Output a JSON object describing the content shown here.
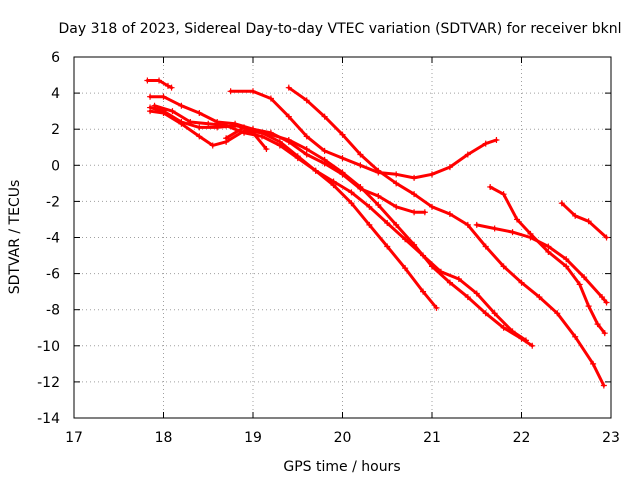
{
  "chart_data": {
    "type": "scatter",
    "title": "Day 318 of 2023, Sidereal Day-to-day VTEC variation (SDTVAR) for receiver bknl",
    "xlabel": "GPS time / hours",
    "ylabel": "SDTVAR / TECUs",
    "xlim": [
      17,
      23
    ],
    "ylim": [
      -14,
      6
    ],
    "xticks": [
      17,
      18,
      19,
      20,
      21,
      22,
      23
    ],
    "yticks": [
      -14,
      -12,
      -10,
      -8,
      -6,
      -4,
      -2,
      0,
      2,
      4,
      6
    ],
    "grid": true,
    "color": "#ff0000",
    "marker": "plus",
    "series": [
      {
        "name": "arc-1",
        "points": [
          [
            17.82,
            4.7
          ],
          [
            17.95,
            4.7
          ],
          [
            18.05,
            4.4
          ],
          [
            18.09,
            4.3
          ]
        ]
      },
      {
        "name": "arc-2",
        "points": [
          [
            17.85,
            3.8
          ],
          [
            18.0,
            3.8
          ],
          [
            18.2,
            3.3
          ],
          [
            18.4,
            2.9
          ],
          [
            18.6,
            2.4
          ],
          [
            18.8,
            2.3
          ],
          [
            19.0,
            2.0
          ],
          [
            19.2,
            1.8
          ],
          [
            19.4,
            1.3
          ],
          [
            19.6,
            0.6
          ],
          [
            19.8,
            0.1
          ],
          [
            20.0,
            -0.5
          ],
          [
            20.2,
            -1.3
          ],
          [
            20.4,
            -1.7
          ],
          [
            20.6,
            -2.3
          ],
          [
            20.8,
            -2.6
          ],
          [
            20.92,
            -2.6
          ]
        ]
      },
      {
        "name": "arc-3",
        "points": [
          [
            17.85,
            3.2
          ],
          [
            18.0,
            3.0
          ],
          [
            18.2,
            2.4
          ],
          [
            18.4,
            2.1
          ],
          [
            18.6,
            2.1
          ],
          [
            18.8,
            2.2
          ],
          [
            19.0,
            2.0
          ],
          [
            19.2,
            1.7
          ],
          [
            19.4,
            1.4
          ],
          [
            19.6,
            0.9
          ],
          [
            19.8,
            0.3
          ],
          [
            20.0,
            -0.4
          ],
          [
            20.2,
            -1.2
          ],
          [
            20.4,
            -2.2
          ],
          [
            20.6,
            -3.3
          ],
          [
            20.8,
            -4.4
          ],
          [
            21.0,
            -5.6
          ],
          [
            21.2,
            -6.5
          ],
          [
            21.4,
            -7.3
          ],
          [
            21.6,
            -8.2
          ],
          [
            21.8,
            -9.0
          ],
          [
            22.0,
            -9.6
          ],
          [
            22.12,
            -10.0
          ]
        ]
      },
      {
        "name": "arc-4",
        "points": [
          [
            17.85,
            3.0
          ],
          [
            18.0,
            2.9
          ],
          [
            18.2,
            2.3
          ],
          [
            18.4,
            1.6
          ],
          [
            18.55,
            1.1
          ],
          [
            18.7,
            1.3
          ],
          [
            18.9,
            1.9
          ],
          [
            19.1,
            1.8
          ],
          [
            19.3,
            1.3
          ],
          [
            19.5,
            0.5
          ],
          [
            19.7,
            -0.3
          ],
          [
            19.9,
            -0.9
          ],
          [
            20.1,
            -1.5
          ],
          [
            20.3,
            -2.3
          ],
          [
            20.5,
            -3.2
          ],
          [
            20.7,
            -4.1
          ],
          [
            20.9,
            -5.0
          ],
          [
            21.1,
            -5.9
          ],
          [
            21.3,
            -6.3
          ],
          [
            21.5,
            -7.1
          ],
          [
            21.7,
            -8.2
          ],
          [
            21.9,
            -9.2
          ],
          [
            22.05,
            -9.7
          ]
        ]
      },
      {
        "name": "arc-5",
        "points": [
          [
            17.9,
            3.3
          ],
          [
            18.1,
            3.0
          ],
          [
            18.3,
            2.4
          ],
          [
            18.5,
            2.3
          ],
          [
            18.7,
            2.2
          ],
          [
            18.9,
            1.8
          ],
          [
            19.1,
            1.6
          ],
          [
            19.3,
            1.1
          ],
          [
            19.5,
            0.4
          ],
          [
            19.7,
            -0.3
          ],
          [
            19.9,
            -1.1
          ],
          [
            20.1,
            -2.1
          ],
          [
            20.3,
            -3.3
          ],
          [
            20.5,
            -4.5
          ],
          [
            20.7,
            -5.7
          ],
          [
            20.9,
            -7.0
          ],
          [
            21.05,
            -7.9
          ]
        ]
      },
      {
        "name": "arc-6",
        "points": [
          [
            18.7,
            1.5
          ],
          [
            18.9,
            2.1
          ],
          [
            19.0,
            1.8
          ],
          [
            19.15,
            0.9
          ]
        ]
      },
      {
        "name": "arc-7",
        "points": [
          [
            18.75,
            4.1
          ],
          [
            19.0,
            4.1
          ],
          [
            19.2,
            3.7
          ],
          [
            19.4,
            2.7
          ],
          [
            19.6,
            1.6
          ],
          [
            19.8,
            0.8
          ],
          [
            20.0,
            0.4
          ],
          [
            20.2,
            0.0
          ],
          [
            20.4,
            -0.4
          ],
          [
            20.6,
            -0.5
          ],
          [
            20.8,
            -0.7
          ],
          [
            21.0,
            -0.5
          ],
          [
            21.2,
            -0.1
          ],
          [
            21.4,
            0.6
          ],
          [
            21.6,
            1.2
          ],
          [
            21.72,
            1.4
          ]
        ]
      },
      {
        "name": "arc-8",
        "points": [
          [
            19.4,
            4.3
          ],
          [
            19.6,
            3.6
          ],
          [
            19.8,
            2.7
          ],
          [
            20.0,
            1.7
          ],
          [
            20.2,
            0.6
          ],
          [
            20.4,
            -0.3
          ],
          [
            20.6,
            -1.0
          ],
          [
            20.8,
            -1.6
          ],
          [
            21.0,
            -2.3
          ],
          [
            21.2,
            -2.7
          ],
          [
            21.4,
            -3.3
          ],
          [
            21.6,
            -4.5
          ],
          [
            21.8,
            -5.6
          ],
          [
            22.0,
            -6.5
          ],
          [
            22.2,
            -7.3
          ],
          [
            22.4,
            -8.2
          ],
          [
            22.6,
            -9.5
          ],
          [
            22.8,
            -11.0
          ],
          [
            22.92,
            -12.2
          ]
        ]
      },
      {
        "name": "arc-9",
        "points": [
          [
            21.5,
            -3.3
          ],
          [
            21.7,
            -3.5
          ],
          [
            21.9,
            -3.7
          ],
          [
            22.1,
            -4.0
          ],
          [
            22.3,
            -4.5
          ],
          [
            22.5,
            -5.2
          ],
          [
            22.7,
            -6.2
          ],
          [
            22.9,
            -7.3
          ],
          [
            22.95,
            -7.6
          ]
        ]
      },
      {
        "name": "arc-10",
        "points": [
          [
            21.65,
            -1.2
          ],
          [
            21.8,
            -1.6
          ],
          [
            21.95,
            -3.0
          ],
          [
            22.1,
            -3.8
          ],
          [
            22.3,
            -4.8
          ],
          [
            22.5,
            -5.6
          ],
          [
            22.65,
            -6.6
          ],
          [
            22.75,
            -7.8
          ],
          [
            22.85,
            -8.8
          ],
          [
            22.93,
            -9.3
          ]
        ]
      },
      {
        "name": "arc-11",
        "points": [
          [
            22.45,
            -2.1
          ],
          [
            22.6,
            -2.8
          ],
          [
            22.75,
            -3.1
          ],
          [
            22.95,
            -4.0
          ]
        ]
      }
    ]
  }
}
